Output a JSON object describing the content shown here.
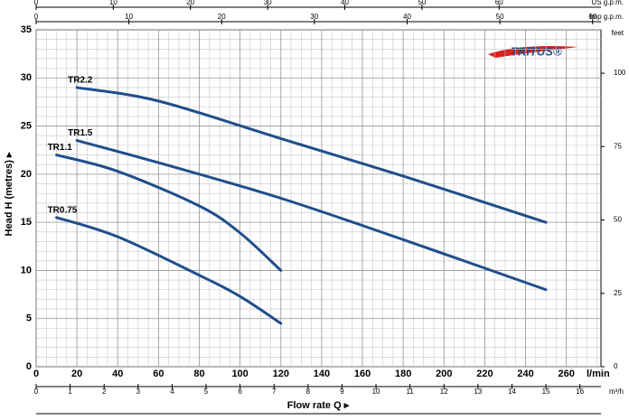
{
  "chart_data": {
    "type": "line",
    "logo": "TRITUS®",
    "ylabel": "Head H  (metres)  ▸",
    "xlabel": "Flow rate  Q  ▸",
    "xunit": "l/min",
    "xlim": [
      0,
      277
    ],
    "xticks": [
      0,
      20,
      40,
      60,
      80,
      100,
      120,
      140,
      160,
      180,
      200,
      220,
      240,
      260
    ],
    "ylim": [
      0,
      35
    ],
    "yticks": [
      0,
      5,
      10,
      15,
      20,
      25,
      30,
      35
    ],
    "grid": true,
    "xminor": 5,
    "yminor": 1,
    "y2label": "feet",
    "y2lim": [
      0,
      114.8
    ],
    "y2ticks": [
      0,
      25,
      50,
      75,
      100
    ],
    "extra_x_axes": [
      {
        "label": "US g.p.m.",
        "lim": [
          0,
          73.2
        ],
        "ticks": [
          0,
          10,
          20,
          30,
          40,
          50,
          60
        ]
      },
      {
        "label": "Imp g.p.m.",
        "lim": [
          0,
          60.9
        ],
        "ticks": [
          0,
          10,
          20,
          30,
          40,
          50,
          60
        ]
      },
      {
        "label": "m³/h",
        "lim": [
          0,
          16.62
        ],
        "ticks": [
          0,
          1,
          2,
          3,
          4,
          5,
          6,
          7,
          8,
          9,
          10,
          11,
          12,
          13,
          14,
          15,
          16
        ]
      }
    ],
    "series": [
      {
        "name": "TR2.2",
        "color": "#1f4e8c",
        "x": [
          20,
          60,
          120,
          180,
          250
        ],
        "values": [
          29,
          27.6,
          23.7,
          19.8,
          15
        ]
      },
      {
        "name": "TR1.5",
        "color": "#1f4e8c",
        "x": [
          20,
          60,
          120,
          180,
          250
        ],
        "values": [
          23.5,
          21.2,
          17.5,
          13.2,
          8
        ]
      },
      {
        "name": "TR1.1",
        "color": "#1f4e8c",
        "x": [
          10,
          40,
          80,
          100,
          120
        ],
        "values": [
          22,
          20.3,
          16.7,
          13.9,
          10
        ]
      },
      {
        "name": "TR0.75",
        "color": "#1f4e8c",
        "x": [
          10,
          40,
          80,
          100,
          120
        ],
        "values": [
          15.5,
          13.5,
          9.5,
          7.3,
          4.5
        ]
      }
    ]
  }
}
